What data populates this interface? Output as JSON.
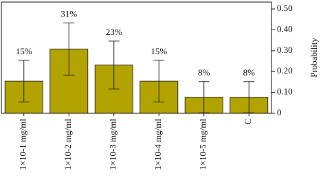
{
  "chart_data": {
    "type": "bar",
    "y_label": "Probability",
    "categories": [
      "1×10-1 mg/ml",
      "1×10-2 mg/ml",
      "1×10-3 mg/ml",
      "1×10-4 mg/ml",
      "1×10-5 mg/ml",
      "C"
    ],
    "values": [
      0.154,
      0.308,
      0.231,
      0.154,
      0.077,
      0.077
    ],
    "value_labels": [
      "15%",
      "31%",
      "23%",
      "15%",
      "8%",
      "8%"
    ],
    "errors": [
      0.1,
      0.125,
      0.115,
      0.1,
      0.075,
      0.075
    ],
    "color": "#b3a300",
    "ylim": [
      0,
      0.533
    ],
    "yticks": [
      0,
      {
        "value": 0.1,
        "label": "0.10"
      },
      {
        "value": 0.2,
        "label": "0.20"
      },
      {
        "value": 0.3,
        "label": "0.30"
      },
      {
        "value": 0.4,
        "label": "0.40"
      },
      {
        "value": 0.5,
        "label": "0.50"
      }
    ],
    "y_axis_side": "right"
  }
}
